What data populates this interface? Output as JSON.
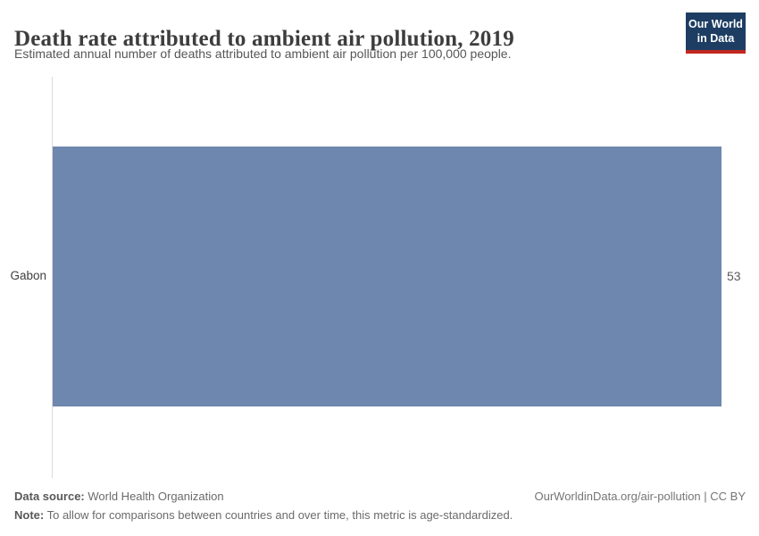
{
  "header": {
    "title": "Death rate attributed to ambient air pollution, 2019",
    "subtitle": "Estimated annual number of deaths attributed to ambient air pollution per 100,000 people.",
    "logo": {
      "line1": "Our World",
      "line2": "in Data",
      "bg_color": "#1d3d63",
      "accent_color": "#c2281f"
    }
  },
  "chart_data": {
    "type": "bar",
    "orientation": "horizontal",
    "title": "Death rate attributed to ambient air pollution, 2019",
    "subtitle": "Estimated annual number of deaths attributed to ambient air pollution per 100,000 people.",
    "categories": [
      "Gabon"
    ],
    "values": [
      53
    ],
    "value_labels": [
      "53"
    ],
    "xlabel": "",
    "ylabel": "",
    "xlim": [
      0,
      53
    ],
    "grid": false,
    "legend": false,
    "bar_color": "#6e87ae",
    "axis_line_color": "#dcdcdc"
  },
  "footer": {
    "data_source_label": "Data source:",
    "data_source_value": " World Health Organization",
    "note_label": "Note:",
    "note_value": " To allow for comparisons between countries and over time, this metric is age-standardized.",
    "attribution": "OurWorldinData.org/air-pollution | CC BY"
  }
}
